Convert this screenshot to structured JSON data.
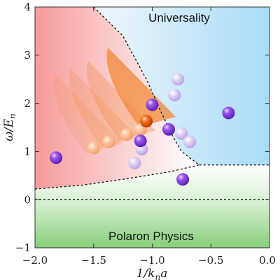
{
  "labels": {
    "universality": "Universality",
    "polaron": "Polaron Physics"
  },
  "axes": {
    "x_title_main": "1/k",
    "x_title_sub": "n",
    "x_title_tail": "a",
    "y_title_main": "ω/E",
    "y_title_sub": "n",
    "x_ticks": [
      "−2.0",
      "−1.5",
      "−1.0",
      "−0.5",
      "0.0"
    ],
    "y_ticks": [
      "−1",
      "0",
      "1",
      "2",
      "3",
      "4"
    ]
  },
  "chart_data": {
    "type": "scatter",
    "xlim": [
      -2.0,
      0.0
    ],
    "ylim": [
      -1,
      4
    ],
    "x_ticks": [
      -2.0,
      -1.5,
      -1.0,
      -0.5,
      0.0
    ],
    "y_ticks": [
      -1,
      0,
      1,
      2,
      3,
      4
    ],
    "series": [
      {
        "color": "#8a3fe0",
        "points": [
          [
            -1.82,
            0.87
          ],
          [
            -1.1,
            1.22
          ],
          [
            -1.0,
            1.97
          ],
          [
            -0.86,
            1.46
          ],
          [
            -0.74,
            0.42
          ],
          [
            -0.35,
            1.8
          ]
        ]
      },
      {
        "color": "#cbb6ee",
        "points": [
          [
            -0.78,
            2.5
          ],
          [
            -0.81,
            2.17
          ],
          [
            -0.75,
            1.37
          ],
          [
            -0.68,
            1.2
          ],
          [
            -1.09,
            1.05
          ],
          [
            -1.15,
            0.76
          ]
        ]
      },
      {
        "color": "#e8560f",
        "points": [
          [
            -1.05,
            1.63
          ]
        ]
      },
      {
        "color": "#f9b07f",
        "points": [
          [
            -1.1,
            1.45
          ],
          [
            -1.22,
            1.35
          ],
          [
            -1.37,
            1.2
          ],
          [
            -1.5,
            1.07
          ]
        ]
      }
    ],
    "boundaries": {
      "upper": [
        [
          -1.5,
          4.0
        ],
        [
          -1.25,
          3.4
        ],
        [
          -1.05,
          2.5
        ],
        [
          -0.93,
          1.85
        ],
        [
          -0.84,
          1.38
        ],
        [
          -0.75,
          1.0
        ],
        [
          -0.6,
          0.72
        ],
        [
          0.0,
          0.72
        ]
      ],
      "lower": [
        [
          -2.0,
          0.22
        ],
        [
          -1.6,
          0.3
        ],
        [
          -1.2,
          0.44
        ],
        [
          -0.85,
          0.58
        ],
        [
          -0.6,
          0.72
        ]
      ],
      "zero_line": [
        [
          -2.0,
          0.0
        ],
        [
          0.0,
          0.0
        ]
      ]
    },
    "colors": {
      "universality_fill": "#bfe4f6",
      "red_fill": "#f7a0a0",
      "polaron_fill": "#8fd484",
      "orange_cone": "#f28a3a"
    }
  }
}
